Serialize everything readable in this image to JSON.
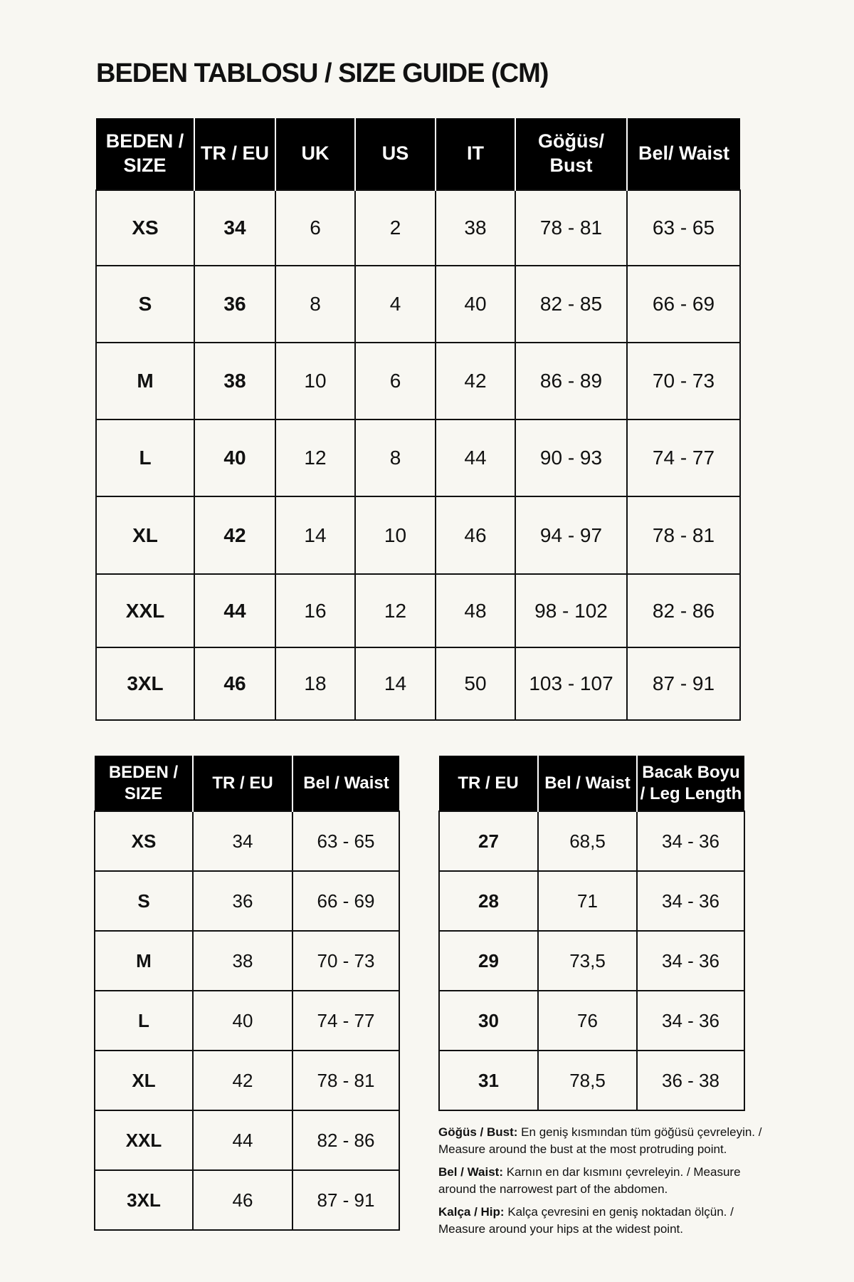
{
  "title": "BEDEN TABLOSU / SIZE GUIDE (CM)",
  "main_table": {
    "headers": [
      "BEDEN / SIZE",
      "TR / EU",
      "UK",
      "US",
      "IT",
      "Göğüs/ Bust",
      "Bel/ Waist"
    ],
    "rows": [
      [
        "XS",
        "34",
        "6",
        "2",
        "38",
        "78 - 81",
        "63 - 65"
      ],
      [
        "S",
        "36",
        "8",
        "4",
        "40",
        "82 - 85",
        "66 - 69"
      ],
      [
        "M",
        "38",
        "10",
        "6",
        "42",
        "86 - 89",
        "70 - 73"
      ],
      [
        "L",
        "40",
        "12",
        "8",
        "44",
        "90 - 93",
        "74 - 77"
      ],
      [
        "XL",
        "42",
        "14",
        "10",
        "46",
        "94 - 97",
        "78 - 81"
      ],
      [
        "XXL",
        "44",
        "16",
        "12",
        "48",
        "98 - 102",
        "82 - 86"
      ],
      [
        "3XL",
        "46",
        "18",
        "14",
        "50",
        "103 - 107",
        "87 - 91"
      ]
    ]
  },
  "waist_table": {
    "headers": [
      "BEDEN / SIZE",
      "TR / EU",
      "Bel / Waist"
    ],
    "rows": [
      [
        "XS",
        "34",
        "63 - 65"
      ],
      [
        "S",
        "36",
        "66 - 69"
      ],
      [
        "M",
        "38",
        "70 - 73"
      ],
      [
        "L",
        "40",
        "74 - 77"
      ],
      [
        "XL",
        "42",
        "78 - 81"
      ],
      [
        "XXL",
        "44",
        "82 - 86"
      ],
      [
        "3XL",
        "46",
        "87 - 91"
      ]
    ]
  },
  "leg_table": {
    "headers": [
      "TR / EU",
      "Bel / Waist",
      "Bacak Boyu / Leg Length"
    ],
    "rows": [
      [
        "27",
        "68,5",
        "34 - 36"
      ],
      [
        "28",
        "71",
        "34 - 36"
      ],
      [
        "29",
        "73,5",
        "34 - 36"
      ],
      [
        "30",
        "76",
        "34 - 36"
      ],
      [
        "31",
        "78,5",
        "36 - 38"
      ]
    ]
  },
  "notes": [
    {
      "label": "Göğüs / Bust:",
      "text": " En geniş kısmından tüm göğüsü çevreleyin. / Measure around the bust at the most protruding point."
    },
    {
      "label": "Bel / Waist:",
      "text": " Karnın en dar kısmını çevreleyin. / Measure around the narrowest part of the abdomen."
    },
    {
      "label": "Kalça / Hip:",
      "text": " Kalça çevresini en geniş noktadan ölçün. / Measure around your hips at the widest point."
    }
  ]
}
